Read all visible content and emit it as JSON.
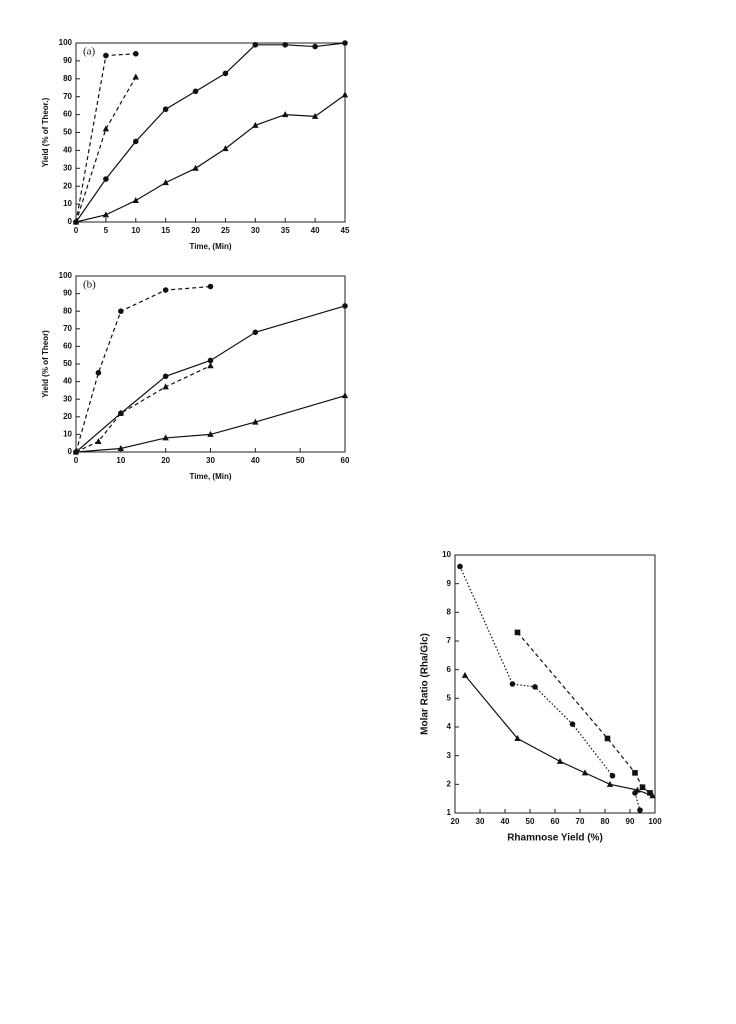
{
  "chart_data": [
    {
      "type": "line",
      "label": "(a)",
      "x_label": "Time, (Min)",
      "y_label": "Yield (% of Theor.)",
      "xlim": [
        0,
        45
      ],
      "ylim": [
        0,
        100
      ],
      "xticks": [
        0,
        5,
        10,
        15,
        20,
        25,
        30,
        35,
        40,
        45
      ],
      "yticks": [
        0,
        10,
        20,
        30,
        40,
        50,
        60,
        70,
        80,
        90,
        100
      ],
      "series": [
        {
          "color": "#111111",
          "line": "dashed",
          "marker": "circle",
          "x": [
            0,
            5,
            10
          ],
          "values": [
            0,
            93,
            94
          ]
        },
        {
          "color": "#111111",
          "line": "dashed",
          "marker": "triangle",
          "x": [
            0,
            5,
            10
          ],
          "values": [
            0,
            52,
            81
          ]
        },
        {
          "color": "#111111",
          "line": "solid",
          "marker": "circle",
          "x": [
            0,
            5,
            10,
            15,
            20,
            25,
            30,
            35,
            40,
            45
          ],
          "values": [
            0,
            24,
            45,
            63,
            73,
            83,
            99,
            99,
            98,
            100
          ]
        },
        {
          "color": "#111111",
          "line": "solid",
          "marker": "triangle",
          "x": [
            0,
            5,
            10,
            15,
            20,
            25,
            30,
            35,
            40,
            45
          ],
          "values": [
            0,
            4,
            12,
            22,
            30,
            41,
            54,
            60,
            59,
            71
          ]
        }
      ]
    },
    {
      "type": "line",
      "label": "(b)",
      "x_label": "Time, (Min)",
      "y_label": "Yield (% of Theor)",
      "xlim": [
        0,
        60
      ],
      "ylim": [
        0,
        100
      ],
      "xticks": [
        0,
        10,
        20,
        30,
        40,
        50,
        60
      ],
      "yticks": [
        0,
        10,
        20,
        30,
        40,
        50,
        60,
        70,
        80,
        90,
        100
      ],
      "series": [
        {
          "color": "#111111",
          "line": "dashed",
          "marker": "circle",
          "x": [
            0,
            5,
            10,
            20,
            30
          ],
          "values": [
            0,
            45,
            80,
            92,
            94
          ]
        },
        {
          "color": "#111111",
          "line": "dashed",
          "marker": "triangle",
          "x": [
            0,
            5,
            10,
            20,
            30
          ],
          "values": [
            0,
            6,
            22,
            37,
            49
          ]
        },
        {
          "color": "#111111",
          "line": "solid",
          "marker": "circle",
          "x": [
            0,
            10,
            20,
            30,
            40,
            60
          ],
          "values": [
            0,
            22,
            43,
            52,
            68,
            83
          ]
        },
        {
          "color": "#111111",
          "line": "solid",
          "marker": "triangle",
          "x": [
            0,
            10,
            20,
            30,
            40,
            60
          ],
          "values": [
            0,
            2,
            8,
            10,
            17,
            32
          ]
        }
      ]
    },
    {
      "type": "line",
      "x_label": "Rhamnose Yield (%)",
      "y_label": "Molar Ratio (Rha/Glc)",
      "xlim": [
        20,
        100
      ],
      "ylim": [
        1,
        10
      ],
      "xticks": [
        20,
        30,
        40,
        50,
        60,
        70,
        80,
        90,
        100
      ],
      "yticks": [
        1,
        2,
        3,
        4,
        5,
        6,
        7,
        8,
        9,
        10
      ],
      "series": [
        {
          "color": "#111111",
          "line": "dotted",
          "marker": "circle",
          "x": [
            22,
            43,
            52,
            67,
            83
          ],
          "values": [
            9.6,
            5.5,
            5.4,
            4.1,
            2.3
          ]
        },
        {
          "color": "#111111",
          "line": "dotted",
          "marker": "circle",
          "x": [
            92,
            94
          ],
          "values": [
            1.7,
            1.1
          ]
        },
        {
          "color": "#111111",
          "line": "dashed",
          "marker": "square",
          "x": [
            45,
            81,
            92,
            95,
            98
          ],
          "values": [
            7.3,
            3.6,
            2.4,
            1.9,
            1.7
          ]
        },
        {
          "color": "#111111",
          "line": "solid",
          "marker": "triangle",
          "x": [
            24,
            45,
            62,
            72,
            82,
            93,
            99
          ],
          "values": [
            5.8,
            3.6,
            2.8,
            2.4,
            2.0,
            1.8,
            1.6
          ]
        }
      ]
    }
  ]
}
